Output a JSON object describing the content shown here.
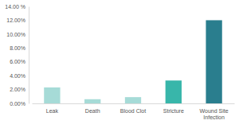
{
  "chart_data": {
    "type": "bar",
    "categories": [
      "Leak",
      "Death",
      "Blood Clot",
      "Stricture",
      "Wound Site Infection"
    ],
    "values": [
      2.3,
      0.6,
      0.9,
      3.3,
      12.0
    ],
    "colors": [
      "#a6dbd7",
      "#a6dbd7",
      "#a6dbd7",
      "#38b6aa",
      "#2a7e8e"
    ],
    "ylim": [
      0,
      14
    ],
    "yticks": [
      {
        "value": 0,
        "label": "0.00%"
      },
      {
        "value": 2,
        "label": "2.00%"
      },
      {
        "value": 4,
        "label": "4.00%"
      },
      {
        "value": 6,
        "label": "6.00%"
      },
      {
        "value": 8,
        "label": "8.00%"
      },
      {
        "value": 10,
        "label": "10.00%"
      },
      {
        "value": 12,
        "label": "12.00%"
      },
      {
        "value": 14,
        "label": "14.00 %"
      }
    ],
    "grid": false
  }
}
